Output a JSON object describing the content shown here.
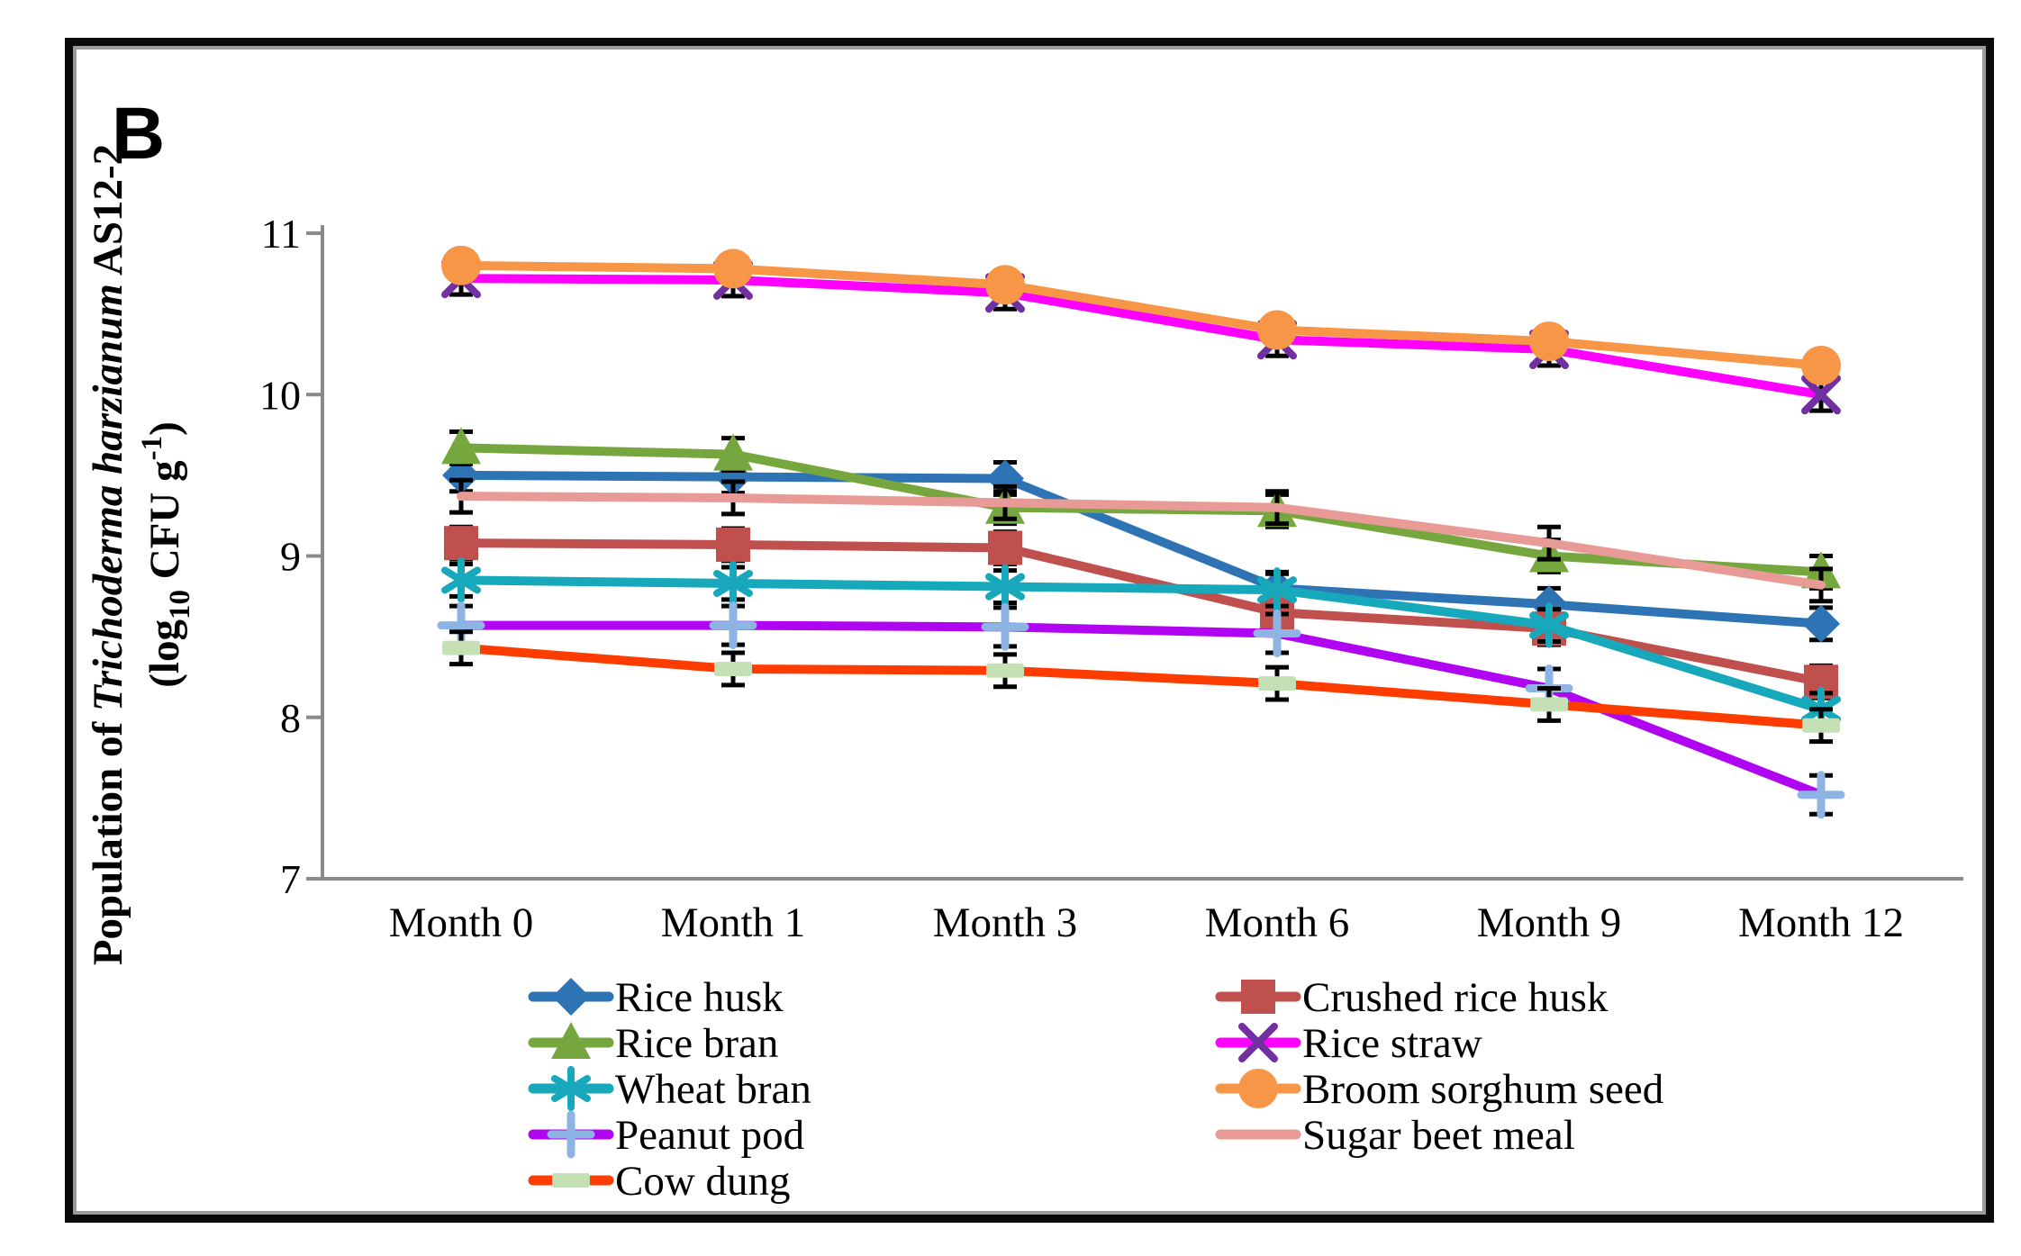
{
  "panel_label": "B",
  "y_axis": {
    "title_prefix": "Population of ",
    "title_species": "Trichoderma harzianum",
    "title_suffix": " AS12-2",
    "unit_open": "(log",
    "unit_sub": "10",
    "unit_mid": " CFU g",
    "unit_sup": "-1",
    "unit_close": ")",
    "ticks": [
      11,
      10,
      9,
      8,
      7
    ],
    "min": 7,
    "max": 11
  },
  "x_axis": {
    "categories": [
      "Month 0",
      "Month 1",
      "Month 3",
      "Month 6",
      "Month 9",
      "Month 12"
    ]
  },
  "chart_data": {
    "type": "line",
    "title": "",
    "xlabel": "",
    "ylabel": "Population of Trichoderma harzianum AS12-2 (log10 CFU g-1)",
    "ylim": [
      7,
      11
    ],
    "grid": false,
    "legend_position": "bottom",
    "categories": [
      "Month 0",
      "Month 1",
      "Month 3",
      "Month 6",
      "Month 9",
      "Month 12"
    ],
    "series": [
      {
        "name": "Rice husk",
        "color": "#2E74B5",
        "marker": "diamond",
        "marker_color": "#2E74B5",
        "values": [
          9.5,
          9.49,
          9.48,
          8.8,
          8.7,
          8.58
        ],
        "err": 0.1
      },
      {
        "name": "Crushed rice husk",
        "color": "#C0504D",
        "marker": "square",
        "marker_color": "#C0504D",
        "values": [
          9.08,
          9.07,
          9.05,
          8.65,
          8.55,
          8.22
        ],
        "err": 0.1
      },
      {
        "name": "Rice bran",
        "color": "#76A73F",
        "marker": "triangle",
        "marker_color": "#76A73F",
        "values": [
          9.67,
          9.63,
          9.3,
          9.28,
          9.0,
          8.9
        ],
        "err": 0.1
      },
      {
        "name": "Rice straw",
        "color": "#FF00FF",
        "marker": "x",
        "marker_color": "#7030A0",
        "values": [
          10.72,
          10.71,
          10.63,
          10.34,
          10.28,
          10.0
        ],
        "err": 0.1
      },
      {
        "name": "Wheat bran",
        "color": "#17A8BC",
        "marker": "asterisk",
        "marker_color": "#17A8BC",
        "values": [
          8.85,
          8.83,
          8.81,
          8.79,
          8.57,
          8.05
        ],
        "err": 0.1
      },
      {
        "name": "Broom sorghum seed",
        "color": "#F79646",
        "marker": "circle",
        "marker_color": "#F79646",
        "values": [
          10.8,
          10.78,
          10.68,
          10.4,
          10.33,
          10.18
        ],
        "err": 0.08
      },
      {
        "name": "Peanut pod",
        "color": "#B005F0",
        "marker": "plus",
        "marker_color": "#8EB4E3",
        "values": [
          8.57,
          8.57,
          8.56,
          8.52,
          8.18,
          7.52
        ],
        "err": 0.12
      },
      {
        "name": "Sugar beet meal",
        "color": "#E89B96",
        "marker": "none",
        "marker_color": "#E89B96",
        "values": [
          9.37,
          9.36,
          9.33,
          9.3,
          9.08,
          8.82
        ],
        "err": 0.1
      },
      {
        "name": "Cow dung",
        "color": "#FF3C00",
        "marker": "dash",
        "marker_color": "#C5E0B4",
        "values": [
          8.43,
          8.3,
          8.29,
          8.21,
          8.08,
          7.95
        ],
        "err": 0.1
      }
    ],
    "legend": {
      "left_column": [
        "Rice husk",
        "Rice bran",
        "Wheat bran",
        "Peanut pod",
        "Cow dung"
      ],
      "right_column": [
        "Crushed rice husk",
        "Rice straw",
        "Broom sorghum seed",
        "Sugar beet meal"
      ]
    },
    "error_bar_color": "#000000",
    "axis_color": "#8a8a8a"
  }
}
